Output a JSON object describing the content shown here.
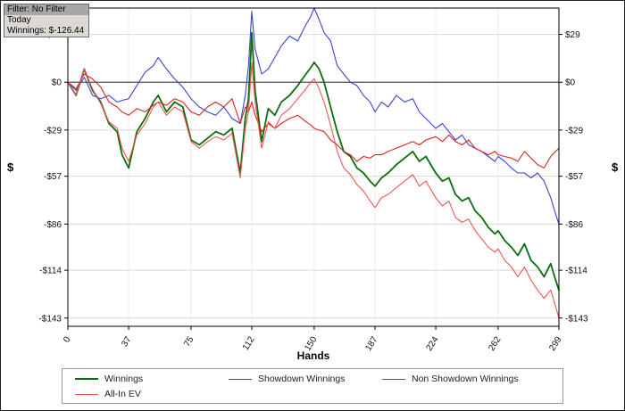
{
  "overlay": {
    "line1": "Filter: No Filter",
    "line2": "Today",
    "line3": "Winnings: $-126.44"
  },
  "chart_data": {
    "type": "line",
    "title": "",
    "xlabel": "Hands",
    "ylabel": "$",
    "xlim": [
      0,
      299
    ],
    "ylim": [
      -148,
      45
    ],
    "grid": true,
    "legend_position": "bottom",
    "x_ticks": [
      0,
      37,
      75,
      112,
      150,
      187,
      224,
      262,
      299
    ],
    "y_ticks": [
      29,
      0,
      -29,
      -57,
      -86,
      -114,
      -143
    ],
    "y_tick_labels": [
      "$29",
      "$0",
      "-$29",
      "-$57",
      "-$86",
      "-$114",
      "-$143"
    ],
    "x": [
      0,
      5,
      10,
      15,
      20,
      25,
      30,
      33,
      37,
      42,
      47,
      52,
      55,
      60,
      65,
      70,
      75,
      80,
      85,
      90,
      95,
      100,
      105,
      108,
      110,
      112,
      114,
      118,
      122,
      126,
      130,
      135,
      140,
      145,
      148,
      150,
      153,
      156,
      160,
      164,
      168,
      172,
      176,
      180,
      184,
      187,
      191,
      195,
      200,
      205,
      210,
      214,
      218,
      224,
      228,
      232,
      236,
      240,
      244,
      248,
      252,
      256,
      260,
      262,
      266,
      270,
      274,
      278,
      282,
      286,
      290,
      294,
      297,
      299
    ],
    "series": [
      {
        "name": "Winnings",
        "color": "#0b6e0b",
        "width": 1.8,
        "values": [
          0,
          -8,
          8,
          -5,
          -12,
          -25,
          -30,
          -44,
          -52,
          -30,
          -22,
          -12,
          -8,
          -18,
          -12,
          -15,
          -35,
          -38,
          -34,
          -30,
          -32,
          -28,
          -55,
          -22,
          -10,
          30,
          -5,
          -36,
          -16,
          -20,
          -12,
          -8,
          -2,
          5,
          9,
          12,
          8,
          0,
          -15,
          -30,
          -42,
          -45,
          -52,
          -55,
          -60,
          -63,
          -58,
          -55,
          -50,
          -46,
          -42,
          -48,
          -45,
          -55,
          -60,
          -58,
          -68,
          -72,
          -70,
          -78,
          -82,
          -88,
          -92,
          -90,
          -96,
          -100,
          -105,
          -98,
          -108,
          -112,
          -118,
          -110,
          -120,
          -126
        ]
      },
      {
        "name": "Showdown Winnings",
        "color": "#3a45d0",
        "width": 1.1,
        "values": [
          0,
          -5,
          3,
          -8,
          -10,
          -8,
          -12,
          -11,
          -10,
          -2,
          6,
          10,
          15,
          8,
          2,
          -3,
          -10,
          -15,
          -18,
          -20,
          -15,
          -22,
          -25,
          -8,
          10,
          43,
          20,
          5,
          8,
          15,
          22,
          28,
          25,
          35,
          40,
          45,
          38,
          30,
          25,
          10,
          5,
          0,
          -2,
          -8,
          -12,
          -18,
          -12,
          -15,
          -8,
          -12,
          -10,
          -18,
          -22,
          -28,
          -25,
          -30,
          -35,
          -32,
          -38,
          -40,
          -42,
          -45,
          -48,
          -45,
          -48,
          -52,
          -55,
          -55,
          -58,
          -55,
          -60,
          -70,
          -80,
          -86
        ]
      },
      {
        "name": "Non Showdown Winnings",
        "color": "#e02222",
        "width": 1.1,
        "values": [
          0,
          -4,
          5,
          2,
          -3,
          -12,
          -15,
          -18,
          -20,
          -16,
          -18,
          -14,
          -12,
          -14,
          -10,
          -12,
          -18,
          -20,
          -15,
          -12,
          -15,
          -10,
          -25,
          -15,
          -18,
          -12,
          -20,
          -30,
          -25,
          -28,
          -25,
          -22,
          -20,
          -24,
          -26,
          -28,
          -29,
          -30,
          -35,
          -38,
          -42,
          -44,
          -48,
          -45,
          -46,
          -44,
          -44,
          -42,
          -40,
          -38,
          -36,
          -38,
          -35,
          -33,
          -36,
          -32,
          -36,
          -38,
          -35,
          -40,
          -42,
          -44,
          -42,
          -44,
          -45,
          -46,
          -48,
          -42,
          -46,
          -50,
          -52,
          -45,
          -42,
          -40
        ]
      },
      {
        "name": "All-In EV",
        "color": "#f05555",
        "width": 1.1,
        "values": [
          0,
          -8,
          8,
          -4,
          -13,
          -24,
          -28,
          -40,
          -48,
          -32,
          -25,
          -15,
          -12,
          -20,
          -15,
          -18,
          -36,
          -40,
          -36,
          -33,
          -35,
          -31,
          -58,
          -28,
          -18,
          12,
          -12,
          -40,
          -24,
          -28,
          -20,
          -16,
          -10,
          -4,
          0,
          2,
          -4,
          -12,
          -26,
          -42,
          -52,
          -56,
          -62,
          -66,
          -72,
          -76,
          -70,
          -68,
          -64,
          -60,
          -56,
          -63,
          -60,
          -70,
          -75,
          -72,
          -82,
          -85,
          -83,
          -90,
          -95,
          -100,
          -103,
          -101,
          -108,
          -112,
          -118,
          -112,
          -120,
          -126,
          -131,
          -126,
          -136,
          -143
        ]
      }
    ]
  }
}
